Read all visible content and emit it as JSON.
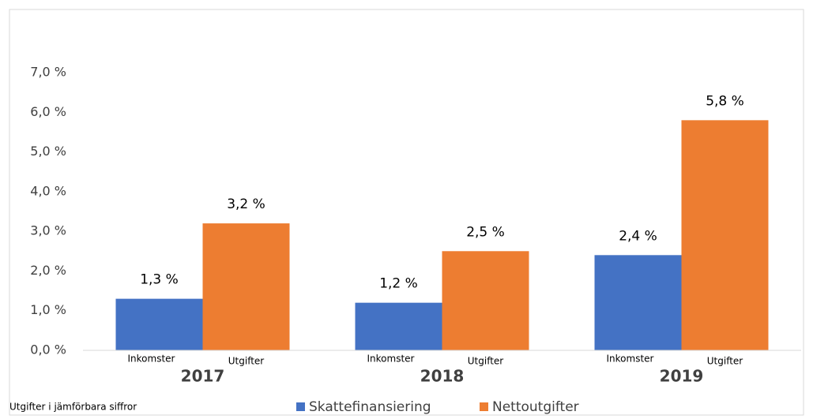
{
  "chart_data": {
    "type": "bar",
    "categories": [
      "2017",
      "2018",
      "2019"
    ],
    "bar_labels": [
      "Inkomster",
      "Utgifter"
    ],
    "series": [
      {
        "name": "Skattefinansiering",
        "color": "#4472c4",
        "values": [
          1.3,
          1.2,
          2.4
        ],
        "value_labels": [
          "1,3 %",
          "1,2 %",
          "2,4 %"
        ]
      },
      {
        "name": "Nettoutgifter",
        "color": "#ed7d31",
        "values": [
          3.2,
          2.5,
          5.8
        ],
        "value_labels": [
          "3,2 %",
          "2,5 %",
          "5,8 %"
        ]
      }
    ],
    "ylim": [
      0,
      7
    ],
    "yticks": [
      {
        "value": 0,
        "label": "0,0 %"
      },
      {
        "value": 1,
        "label": "1,0 %"
      },
      {
        "value": 2,
        "label": "2,0 %"
      },
      {
        "value": 3,
        "label": "3,0 %"
      },
      {
        "value": 4,
        "label": "4,0 %"
      },
      {
        "value": 5,
        "label": "5,0 %"
      },
      {
        "value": 6,
        "label": "6,0 %"
      },
      {
        "value": 7,
        "label": "7,0 %"
      }
    ],
    "grid": false,
    "legend": "bottom",
    "footnote": "Utgifter i jämförbara siffror"
  }
}
